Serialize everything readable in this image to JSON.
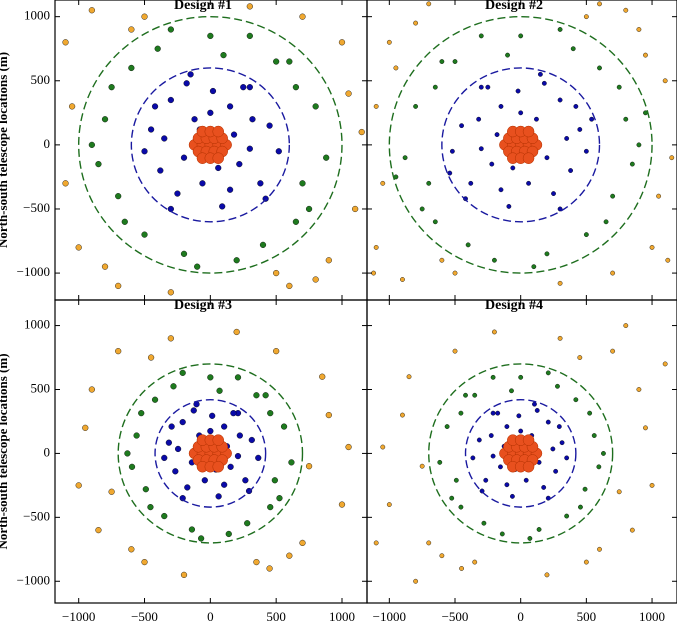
{
  "chart_data": [
    {
      "type": "scatter",
      "title": "Design #1",
      "xlim": [
        -1180,
        1190
      ],
      "ylim": [
        -1210,
        1130
      ],
      "xticks": [
        {
          "value": -1000,
          "label": "−1000"
        },
        {
          "value": -500,
          "label": "−500"
        },
        0,
        500,
        1000
      ],
      "yticks": [
        {
          "value": -1000,
          "label": "−1000"
        },
        {
          "value": -500,
          "label": "−500"
        },
        0,
        500,
        1000
      ],
      "ylabel": "North-south telescope locations (m)",
      "circles": [
        {
          "r": 600,
          "color": "#1a1aa0"
        },
        {
          "r": 1000,
          "color": "#1e6e1e"
        }
      ],
      "series": [
        {
          "color": "#f0a830",
          "x": [
            -1100,
            -1000,
            -900,
            -1050,
            -700,
            -500,
            700,
            900,
            1050,
            1100,
            1000,
            800,
            -800,
            -300,
            300,
            600,
            -1100,
            1150,
            -600,
            500
          ],
          "y": [
            800,
            -800,
            1050,
            300,
            -1100,
            1000,
            1000,
            -900,
            400,
            -500,
            800,
            -1050,
            -950,
            -1150,
            1080,
            -1100,
            -300,
            100,
            900,
            -1000
          ]
        },
        {
          "color": "#1e7a1e",
          "x": [
            -800,
            -700,
            -600,
            -750,
            -850,
            600,
            700,
            800,
            750,
            650,
            0,
            -200,
            200,
            -400,
            400,
            -100,
            100,
            -500,
            500,
            -900,
            880,
            -300,
            300,
            -650,
            650
          ],
          "y": [
            200,
            -400,
            600,
            450,
            -150,
            650,
            -300,
            300,
            -500,
            450,
            850,
            -850,
            -900,
            750,
            -780,
            -950,
            700,
            -700,
            650,
            0,
            -100,
            900,
            850,
            -600,
            -600
          ]
        },
        {
          "color": "#0a0aa8",
          "x": [
            -450,
            -380,
            -300,
            -250,
            -180,
            -120,
            -60,
            20,
            90,
            150,
            220,
            300,
            380,
            450,
            520,
            -500,
            -350,
            -200,
            -80,
            60,
            180,
            320,
            420,
            -300,
            -150,
            0,
            150,
            300,
            -420,
            250
          ],
          "y": [
            120,
            -200,
            350,
            -380,
            480,
            200,
            -300,
            420,
            -480,
            300,
            -150,
            450,
            -300,
            150,
            -50,
            -50,
            50,
            -100,
            120,
            -180,
            80,
            200,
            -420,
            -500,
            550,
            250,
            -350,
            -30,
            300,
            450
          ]
        },
        {
          "color": "#e8501e",
          "x": [
            -120,
            -60,
            0,
            60,
            120,
            -90,
            -30,
            30,
            90,
            -90,
            -30,
            30,
            90,
            -60,
            0,
            60,
            -60,
            0,
            60
          ],
          "y": [
            0,
            0,
            0,
            0,
            0,
            52,
            52,
            52,
            52,
            -52,
            -52,
            -52,
            -52,
            104,
            104,
            104,
            -104,
            -104,
            -104
          ]
        }
      ]
    },
    {
      "type": "scatter",
      "title": "Design #2",
      "xlim": [
        -1170,
        1190
      ],
      "ylim": [
        -1210,
        1130
      ],
      "xticks": [
        {
          "value": -1000,
          "label": "−1000"
        },
        {
          "value": -500,
          "label": "−500"
        },
        0,
        500,
        1000
      ],
      "yticks": [
        {
          "value": -1000,
          "label": "−1000"
        },
        {
          "value": -500,
          "label": "−500"
        },
        0,
        500,
        1000
      ],
      "circles": [
        {
          "r": 600,
          "color": "#1a1aa0"
        },
        {
          "r": 1000,
          "color": "#1e6e1e"
        }
      ],
      "series": [
        {
          "color": "#f0a830",
          "x": [
            -1100,
            -1000,
            -900,
            -1050,
            -700,
            -500,
            700,
            900,
            1050,
            1100,
            1000,
            800,
            -800,
            -300,
            300,
            600,
            -1100,
            1150,
            -600,
            500,
            -950,
            950,
            1120,
            -1120
          ],
          "y": [
            -800,
            800,
            -1050,
            -300,
            1100,
            -1000,
            -1000,
            900,
            -400,
            500,
            -800,
            1050,
            950,
            1150,
            -1080,
            1100,
            300,
            -100,
            -900,
            1000,
            600,
            700,
            -900,
            -1000
          ]
        },
        {
          "color": "#1e7a1e",
          "x": [
            800,
            700,
            600,
            750,
            850,
            -600,
            -700,
            -800,
            -750,
            -650,
            0,
            200,
            -200,
            400,
            -400,
            100,
            -100,
            500,
            -500,
            900,
            -880,
            300,
            -300,
            650,
            -650,
            950,
            -950
          ],
          "y": [
            200,
            -400,
            600,
            450,
            -150,
            650,
            -300,
            300,
            -500,
            450,
            850,
            -850,
            -900,
            750,
            -780,
            -950,
            700,
            -700,
            650,
            0,
            -100,
            900,
            850,
            -600,
            -600,
            250,
            -250
          ]
        },
        {
          "color": "#0a0aa8",
          "x": [
            450,
            380,
            300,
            250,
            180,
            120,
            60,
            -20,
            -90,
            -150,
            -220,
            -300,
            -380,
            -450,
            -520,
            500,
            350,
            200,
            80,
            -60,
            -180,
            -320,
            -420,
            300,
            150,
            0,
            -150,
            -300,
            420,
            -250,
            540,
            -540
          ],
          "y": [
            120,
            -200,
            350,
            -380,
            480,
            200,
            -300,
            420,
            -480,
            300,
            -150,
            450,
            -300,
            150,
            -50,
            -50,
            50,
            -100,
            120,
            -180,
            80,
            200,
            -420,
            -500,
            550,
            250,
            -350,
            -30,
            300,
            450,
            200,
            -220
          ]
        },
        {
          "color": "#e8501e",
          "x": [
            -120,
            -60,
            0,
            60,
            120,
            -90,
            -30,
            30,
            90,
            -90,
            -30,
            30,
            90,
            -60,
            0,
            60,
            -60,
            0,
            60
          ],
          "y": [
            0,
            0,
            0,
            0,
            0,
            52,
            52,
            52,
            52,
            -52,
            -52,
            -52,
            -52,
            104,
            104,
            104,
            -104,
            -104,
            -104
          ]
        }
      ]
    },
    {
      "type": "scatter",
      "title": "Design #3",
      "xlim": [
        -1180,
        1190
      ],
      "ylim": [
        -1170,
        1200
      ],
      "xticks": [
        {
          "value": -1000,
          "label": "−1000"
        },
        {
          "value": -500,
          "label": "−500"
        },
        0,
        500,
        1000
      ],
      "yticks": [
        {
          "value": -1000,
          "label": "−1000"
        },
        {
          "value": -500,
          "label": "−500"
        },
        0,
        500,
        1000
      ],
      "ylabel": "North-south telescope locations (m)",
      "circles": [
        {
          "r": 420,
          "color": "#1a1aa0"
        },
        {
          "r": 700,
          "color": "#1e6e1e"
        }
      ],
      "series": [
        {
          "color": "#f0a830",
          "x": [
            -900,
            -850,
            -700,
            -950,
            -500,
            -300,
            500,
            700,
            900,
            1000,
            850,
            600,
            -600,
            -200,
            200,
            450,
            -1000,
            1050,
            -450,
            350,
            -750,
            750
          ],
          "y": [
            500,
            -600,
            800,
            200,
            -850,
            900,
            800,
            -700,
            300,
            -400,
            600,
            -800,
            -750,
            -950,
            950,
            -900,
            -250,
            50,
            750,
            -850,
            -300,
            -100
          ]
        },
        {
          "color": "#1e7a1e",
          "x": [
            -560,
            -490,
            -420,
            -525,
            -595,
            420,
            490,
            560,
            525,
            455,
            0,
            -140,
            140,
            -280,
            280,
            -70,
            70,
            -350,
            350,
            -630,
            616,
            -210,
            210,
            -455,
            455
          ],
          "y": [
            140,
            -280,
            420,
            315,
            -105,
            455,
            -210,
            210,
            -350,
            315,
            595,
            -595,
            -630,
            525,
            -546,
            -665,
            490,
            -490,
            455,
            0,
            -70,
            630,
            595,
            -420,
            -420
          ]
        },
        {
          "color": "#0a0aa8",
          "x": [
            -315,
            -266,
            -210,
            -175,
            -126,
            -84,
            -42,
            14,
            63,
            105,
            154,
            210,
            266,
            315,
            364,
            -350,
            -245,
            -140,
            -56,
            42,
            126,
            224,
            294,
            -210,
            -105,
            0,
            105,
            210,
            -294,
            175
          ],
          "y": [
            84,
            -140,
            245,
            -266,
            336,
            140,
            -210,
            294,
            -336,
            210,
            -105,
            315,
            -210,
            105,
            -35,
            -35,
            35,
            -70,
            84,
            -126,
            56,
            140,
            -294,
            -350,
            385,
            175,
            -245,
            -21,
            210,
            315
          ]
        },
        {
          "color": "#e8501e",
          "x": [
            -120,
            -60,
            0,
            60,
            120,
            -90,
            -30,
            30,
            90,
            -90,
            -30,
            30,
            90,
            -60,
            0,
            60,
            -60,
            0,
            60
          ],
          "y": [
            0,
            0,
            0,
            0,
            0,
            52,
            52,
            52,
            52,
            -52,
            -52,
            -52,
            -52,
            104,
            104,
            104,
            -104,
            -104,
            -104
          ]
        }
      ]
    },
    {
      "type": "scatter",
      "title": "Design #4",
      "xlim": [
        -1170,
        1190
      ],
      "ylim": [
        -1170,
        1200
      ],
      "xticks": [
        {
          "value": -1000,
          "label": "−1000"
        },
        {
          "value": -500,
          "label": "−500"
        },
        0,
        500,
        1000
      ],
      "yticks": [
        {
          "value": -1000,
          "label": "−1000"
        },
        {
          "value": -500,
          "label": "−500"
        },
        0,
        500,
        1000
      ],
      "circles": [
        {
          "r": 420,
          "color": "#1a1aa0"
        },
        {
          "r": 700,
          "color": "#1e6e1e"
        }
      ],
      "series": [
        {
          "color": "#f0a830",
          "x": [
            900,
            850,
            700,
            950,
            500,
            300,
            -500,
            -700,
            -900,
            -1000,
            -850,
            -600,
            600,
            200,
            -200,
            -450,
            1000,
            -1050,
            450,
            -350,
            750,
            -750,
            1100,
            -1100,
            800,
            -800
          ],
          "y": [
            500,
            -600,
            800,
            200,
            -850,
            900,
            800,
            -700,
            300,
            -400,
            600,
            -800,
            -750,
            -950,
            950,
            -900,
            -250,
            50,
            750,
            -850,
            -300,
            -100,
            700,
            -700,
            1000,
            -1000
          ]
        },
        {
          "color": "#1e7a1e",
          "x": [
            560,
            490,
            420,
            525,
            595,
            -420,
            -490,
            -560,
            -525,
            -455,
            0,
            140,
            -140,
            280,
            -280,
            70,
            -70,
            350,
            -350,
            630,
            -616,
            210,
            -210,
            455,
            -455
          ],
          "y": [
            140,
            -280,
            420,
            315,
            -105,
            455,
            -210,
            210,
            -350,
            315,
            595,
            -595,
            -630,
            525,
            -546,
            -665,
            490,
            -490,
            455,
            0,
            -70,
            630,
            595,
            -420,
            -420
          ]
        },
        {
          "color": "#0a0aa8",
          "x": [
            315,
            266,
            210,
            175,
            126,
            84,
            42,
            -14,
            -63,
            -105,
            -154,
            -210,
            -266,
            -315,
            -364,
            350,
            245,
            140,
            56,
            -42,
            -126,
            -224,
            -294,
            210,
            105,
            0,
            -105,
            -210,
            294,
            -175
          ],
          "y": [
            84,
            -140,
            245,
            -266,
            336,
            140,
            -210,
            294,
            -336,
            210,
            -105,
            315,
            -210,
            105,
            -35,
            -35,
            35,
            -70,
            84,
            -126,
            56,
            140,
            -294,
            -350,
            385,
            175,
            -245,
            -21,
            210,
            315
          ]
        },
        {
          "color": "#e8501e",
          "x": [
            -120,
            -60,
            0,
            60,
            120,
            -90,
            -30,
            30,
            90,
            -90,
            -30,
            30,
            90,
            -60,
            0,
            60,
            -60,
            0,
            60
          ],
          "y": [
            0,
            0,
            0,
            0,
            0,
            52,
            52,
            52,
            52,
            -52,
            -52,
            -52,
            -52,
            104,
            104,
            104,
            -104,
            -104,
            -104
          ]
        }
      ]
    }
  ]
}
